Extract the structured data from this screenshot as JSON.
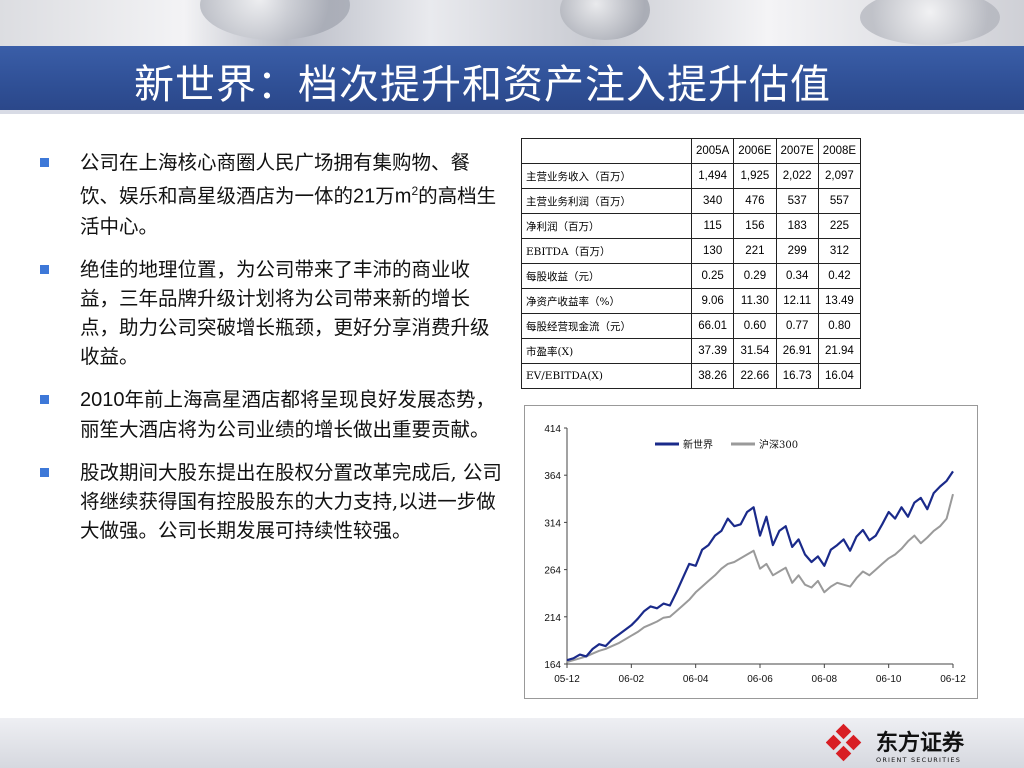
{
  "title": "新世界：档次提升和资产注入提升估值",
  "bullets": {
    "b1": {
      "pre": "公司在上海核心商圈人民广场拥有集购物、餐饮、娱乐和高星级酒店为一体的",
      "num": "21",
      "mid": "万",
      "unit": "m",
      "sup": "2",
      "post": "的高档生活中心。"
    },
    "b2": "绝佳的地理位置，为公司带来了丰沛的商业收益，三年品牌升级计划将为公司带来新的增长点，助力公司突破增长瓶颈，更好分享消费升级收益。",
    "b3": {
      "year": "2010",
      "text": "年前上海高星酒店都将呈现良好发展态势，丽笙大酒店将为公司业绩的增长做出重要贡献。"
    },
    "b4": " 股改期间大股东提出在股权分置改革完成后, 公司将继续获得国有控股股东的大力支持,以进一步做大做强。公司长期发展可持续性较强。"
  },
  "table": {
    "columns": [
      "2005A",
      "2006E",
      "2007E",
      "2008E"
    ],
    "rows": [
      {
        "label": "主营业务收入（百万）",
        "values": [
          "1,494",
          "1,925",
          "2,022",
          "2,097"
        ]
      },
      {
        "label": "主营业务利润（百万）",
        "values": [
          "340",
          "476",
          "537",
          "557"
        ]
      },
      {
        "label": "净利润（百万）",
        "values": [
          "115",
          "156",
          "183",
          "225"
        ]
      },
      {
        "label": "EBITDA（百万）",
        "values": [
          "130",
          "221",
          "299",
          "312"
        ]
      },
      {
        "label": "每股收益（元）",
        "values": [
          "0.25",
          "0.29",
          "0.34",
          "0.42"
        ]
      },
      {
        "label": "净资产收益率（%）",
        "values": [
          "9.06",
          "11.30",
          "12.11",
          "13.49"
        ]
      },
      {
        "label": "每股经营现金流（元）",
        "values": [
          "66.01",
          "0.60",
          "0.77",
          "0.80"
        ]
      },
      {
        "label": "市盈率(X)",
        "values": [
          "37.39",
          "31.54",
          "26.91",
          "21.94"
        ]
      },
      {
        "label": "EV/EBITDA(X)",
        "values": [
          "38.26",
          "22.66",
          "16.73",
          "16.04"
        ]
      }
    ]
  },
  "chart_data": {
    "type": "line",
    "title": "",
    "xlabel": "",
    "ylabel": "",
    "ylim": [
      164,
      414
    ],
    "y_ticks": [
      414,
      364,
      314,
      264,
      214,
      164
    ],
    "x_ticks": [
      "05-12",
      "06-02",
      "06-04",
      "06-06",
      "06-08",
      "06-10",
      "06-12"
    ],
    "legend_position": "top",
    "grid": false,
    "series": [
      {
        "name": "新世界",
        "color": "#1a2a8a",
        "x": [
          0,
          0.2,
          0.4,
          0.6,
          0.8,
          1,
          1.2,
          1.4,
          1.6,
          1.8,
          2,
          2.2,
          2.4,
          2.6,
          2.8,
          3,
          3.2,
          3.4,
          3.6,
          3.8,
          4,
          4.2,
          4.4,
          4.6,
          4.8,
          5,
          5.2,
          5.4,
          5.6,
          5.8,
          6,
          6.2,
          6.4,
          6.6,
          6.8,
          7,
          7.2,
          7.4,
          7.6,
          7.8,
          8,
          8.2,
          8.4,
          8.6,
          8.8,
          9,
          9.2,
          9.4,
          9.6,
          9.8,
          10,
          10.2,
          10.4,
          10.6,
          10.8,
          11,
          11.2,
          11.4,
          11.6,
          11.8,
          12
        ],
        "values": [
          168,
          170,
          174,
          172,
          180,
          185,
          183,
          190,
          195,
          200,
          205,
          212,
          220,
          225,
          223,
          228,
          226,
          240,
          255,
          270,
          268,
          285,
          290,
          300,
          305,
          318,
          310,
          312,
          325,
          330,
          300,
          320,
          290,
          305,
          310,
          288,
          296,
          280,
          272,
          278,
          268,
          285,
          290,
          296,
          284,
          299,
          306,
          295,
          300,
          312,
          325,
          318,
          330,
          320,
          335,
          340,
          328,
          345,
          352,
          358,
          368
        ]
      },
      {
        "name": "沪深300",
        "color": "#9a9a9a",
        "x": [
          0,
          0.2,
          0.4,
          0.6,
          0.8,
          1,
          1.2,
          1.4,
          1.6,
          1.8,
          2,
          2.2,
          2.4,
          2.6,
          2.8,
          3,
          3.2,
          3.4,
          3.6,
          3.8,
          4,
          4.2,
          4.4,
          4.6,
          4.8,
          5,
          5.2,
          5.4,
          5.6,
          5.8,
          6,
          6.2,
          6.4,
          6.6,
          6.8,
          7,
          7.2,
          7.4,
          7.6,
          7.8,
          8,
          8.2,
          8.4,
          8.6,
          8.8,
          9,
          9.2,
          9.4,
          9.6,
          9.8,
          10,
          10.2,
          10.4,
          10.6,
          10.8,
          11,
          11.2,
          11.4,
          11.6,
          11.8,
          12
        ],
        "values": [
          166,
          168,
          170,
          172,
          175,
          178,
          180,
          183,
          186,
          190,
          194,
          198,
          203,
          206,
          209,
          213,
          214,
          220,
          226,
          232,
          240,
          246,
          252,
          258,
          265,
          270,
          272,
          276,
          280,
          284,
          265,
          270,
          258,
          262,
          266,
          250,
          258,
          248,
          245,
          252,
          240,
          246,
          250,
          248,
          246,
          255,
          262,
          258,
          264,
          270,
          276,
          280,
          286,
          294,
          300,
          292,
          298,
          305,
          310,
          318,
          344
        ]
      }
    ]
  }
}
